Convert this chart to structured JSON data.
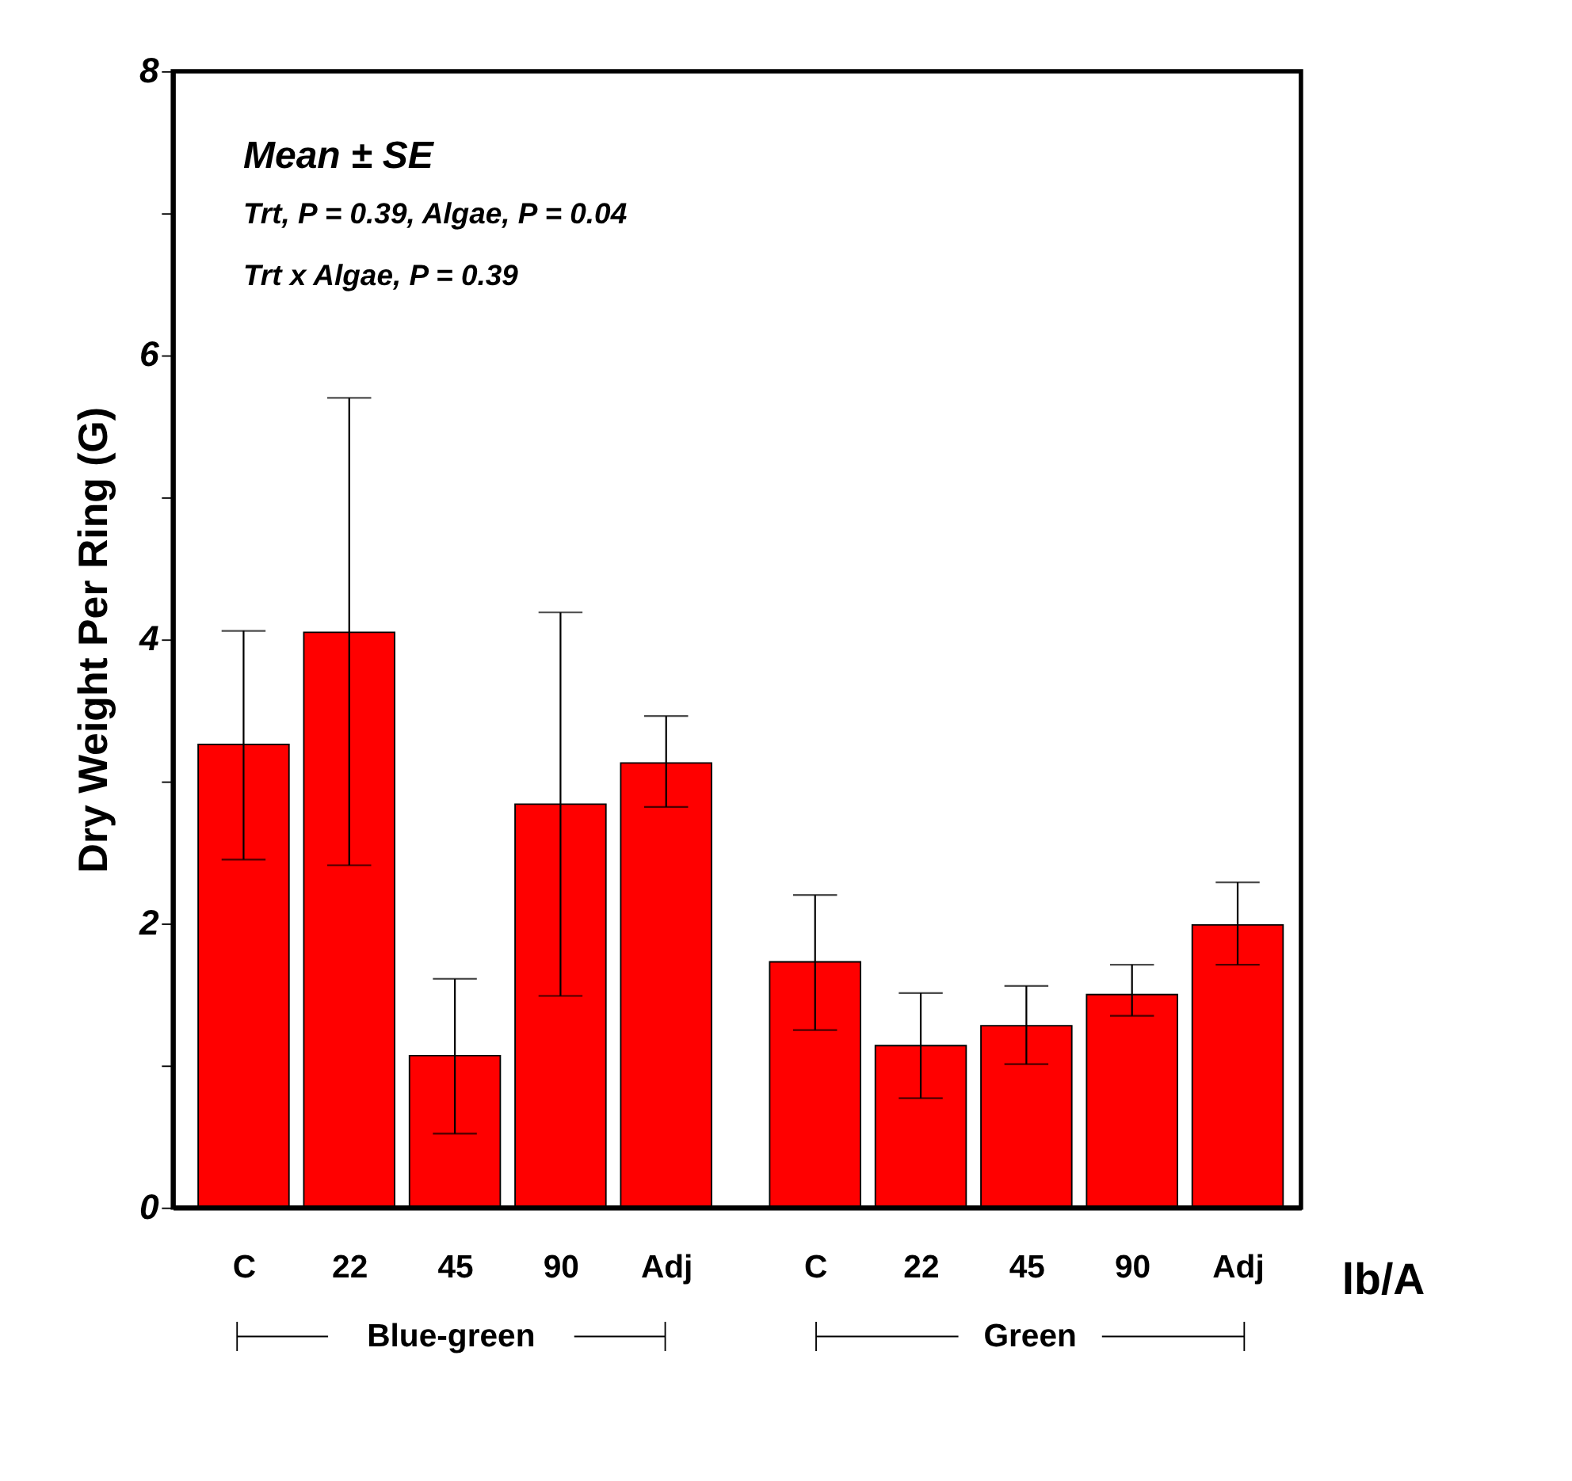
{
  "chart_data": {
    "type": "bar",
    "categories": [
      "C",
      "22",
      "45",
      "90",
      "Adj",
      "C",
      "22",
      "45",
      "90",
      "Adj"
    ],
    "values": [
      3.26,
      4.05,
      1.07,
      2.84,
      3.13,
      1.73,
      1.14,
      1.28,
      1.5,
      1.99
    ],
    "errors": [
      [
        2.45,
        4.06
      ],
      [
        2.41,
        5.7
      ],
      [
        0.52,
        1.61
      ],
      [
        1.49,
        4.19
      ],
      [
        2.82,
        3.46
      ],
      [
        1.25,
        2.2
      ],
      [
        0.77,
        1.51
      ],
      [
        1.01,
        1.56
      ],
      [
        1.35,
        1.71
      ],
      [
        1.71,
        2.29
      ]
    ],
    "color": "#ff0000",
    "ylabel": "Dry Weight Per Ring (G)",
    "xlabel": "lb/A",
    "ylim": [
      0,
      8
    ],
    "yticks": [
      0,
      {
        "value": 1,
        "label": null
      },
      2,
      {
        "value": 3,
        "label": null
      },
      4,
      {
        "value": 5,
        "label": null
      },
      6,
      {
        "value": 7,
        "label": null
      },
      8
    ],
    "annotations": [
      "Mean ± SE",
      "Trt, P = 0.39, Algae, P = 0.04",
      "Trt x Algae, P = 0.39",
      "Blue-green",
      "Green"
    ],
    "grid": false
  }
}
